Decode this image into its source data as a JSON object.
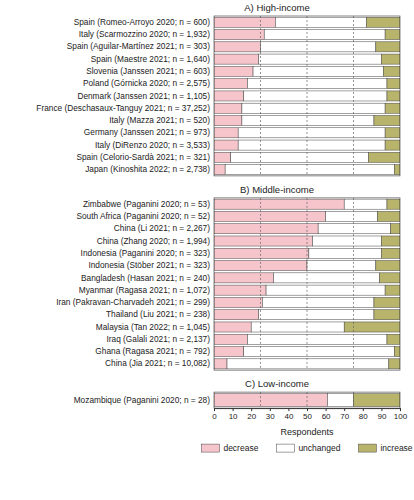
{
  "chart_data": [
    {
      "type": "bar",
      "orientation": "horizontal",
      "stacked": true,
      "title": "A) High-income",
      "categories": [
        "Spain (Romeo-Arroyo 2020; n = 600)",
        "Italy (Scarmozzino 2020; n = 1,932)",
        "Spain (Aguilar-Martínez 2021; n = 303)",
        "Spain (Maestre 2021; n = 1,640)",
        "Slovenia (Janssen 2021; n = 603)",
        "Poland (Górnicka 2020; n = 2,575)",
        "Denmark (Janssen 2021; n = 1,105)",
        "France (Deschasaux-Tanguy 2021; n = 37,252)",
        "Italy (Mazza 2021; n = 520)",
        "Germany (Janssen 2021; n = 973)",
        "Italy (DiRenzo 2020; n = 3,533)",
        "Spain (Celorio-Sardà 2021; n = 321)",
        "Japan (Kinoshita 2022; n = 2,738)"
      ],
      "series": [
        {
          "color": "#f5c5cb",
          "values": [
            33,
            27,
            25,
            24,
            21,
            18,
            16,
            15,
            15,
            13,
            13,
            9,
            6
          ]
        },
        {
          "color": "#ffffff",
          "values": [
            49,
            65,
            62,
            66,
            70,
            75,
            77,
            77,
            71,
            79,
            79,
            74,
            91
          ]
        },
        {
          "color": "#b9b46c",
          "values": [
            18,
            8,
            13,
            10,
            9,
            7,
            7,
            8,
            14,
            8,
            8,
            17,
            3
          ]
        }
      ],
      "xlim": [
        0,
        100
      ],
      "reference_lines": [
        25,
        50,
        75
      ],
      "tick_labels": "y"
    },
    {
      "type": "bar",
      "orientation": "horizontal",
      "stacked": true,
      "title": "B) Middle-income",
      "categories": [
        "Zimbabwe (Paganini 2020; n = 53)",
        "South Africa (Paganini 2020; n = 52)",
        "China (Li 2021; n = 2,267)",
        "China (Zhang 2020; n = 1,994)",
        "Indonesia (Paganini 2020; n = 323)",
        "Indonesia (Stöber 2021; n = 323)",
        "Bangladesh (Hasan 2021; n = 240)",
        "Myanmar (Ragasa 2021; n = 1,072)",
        "Iran (Pakravan-Charvadeh 2021; n = 299)",
        "Thailand (Liu 2021; n = 238)",
        "Malaysia (Tan 2022; n = 1,045)",
        "Iraq (Galali 2021; n = 2,137)",
        "Ghana (Ragasa 2021; n = 792)",
        "China (Jia 2021; n = 10,082)"
      ],
      "series": [
        {
          "color": "#f5c5cb",
          "values": [
            70,
            60,
            56,
            53,
            51,
            50,
            32,
            28,
            26,
            24,
            20,
            18,
            16,
            7
          ]
        },
        {
          "color": "#ffffff",
          "values": [
            23,
            28,
            39,
            37,
            39,
            37,
            57,
            64,
            60,
            62,
            50,
            75,
            81,
            87
          ]
        },
        {
          "color": "#b9b46c",
          "values": [
            7,
            12,
            5,
            10,
            10,
            13,
            11,
            8,
            14,
            14,
            30,
            7,
            3,
            6
          ]
        }
      ],
      "xlim": [
        0,
        100
      ],
      "reference_lines": [
        25,
        50,
        75
      ],
      "tick_labels": "y"
    },
    {
      "type": "bar",
      "orientation": "horizontal",
      "stacked": true,
      "title": "C) Low-income",
      "categories": [
        "Mozambique (Paganini 2020; n = 28)"
      ],
      "series": [
        {
          "name": "decrease",
          "color": "#f5c5cb",
          "values": [
            61
          ]
        },
        {
          "name": "unchanged",
          "color": "#ffffff",
          "values": [
            14
          ]
        },
        {
          "name": "increase",
          "color": "#b9b46c",
          "values": [
            25
          ]
        }
      ],
      "xlim": [
        0,
        100
      ],
      "xticks": [
        0,
        10,
        20,
        30,
        40,
        50,
        60,
        70,
        80,
        90,
        100
      ],
      "reference_lines": [
        25,
        50,
        75
      ],
      "xlabel": "Respondents",
      "legend": "bottom"
    }
  ]
}
